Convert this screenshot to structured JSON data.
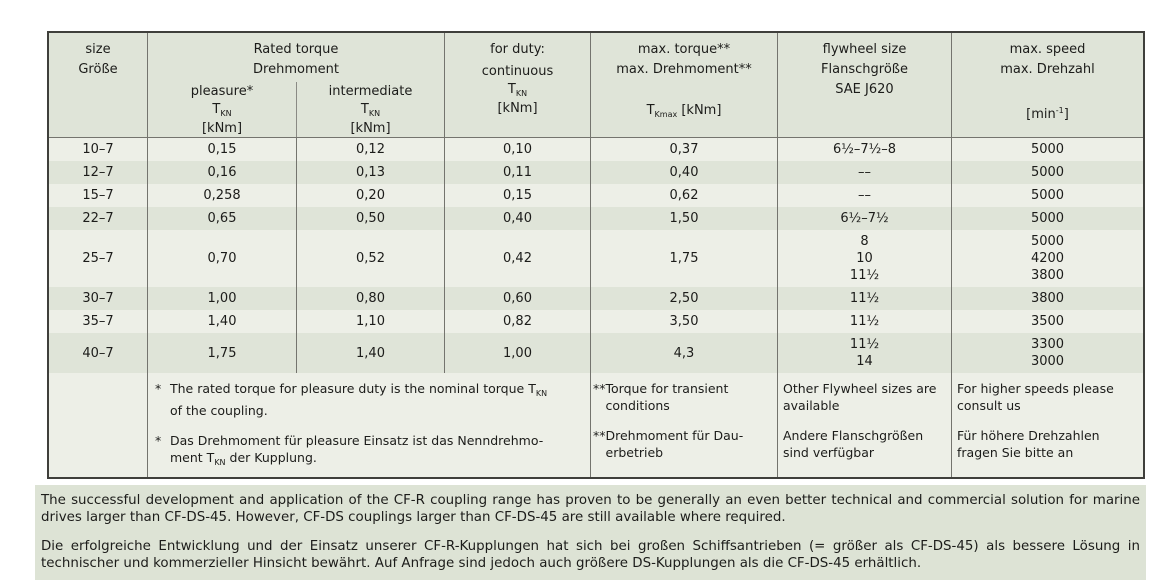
{
  "colors": {
    "row_light": "#edefe7",
    "row_dark": "#dfe4d8",
    "note_block_bg": "#dde3d5",
    "outer_border": "#3f3f3b",
    "grid_line": "#74746e",
    "text": "#1c1c1a"
  },
  "header": {
    "size_line1": "size",
    "size_line2": "Größe",
    "rated_line1": "Rated torque",
    "rated_line2": "Drehmoment",
    "sub_pleasure": "pleasure*",
    "sub_intermediate": "intermediate",
    "duty": "for duty:",
    "sub_continuous": "continuous",
    "torque_sym": "T",
    "torque_sub": "KN",
    "torque_unit": "[kNm]",
    "max_line1": "max. torque**",
    "max_line2": "max. Drehmoment**",
    "tmax_sym": "T",
    "tmax_sub": "Kmax",
    "tmax_unit": " [kNm]",
    "fly_line1": "flywheel size",
    "fly_line2": "Flanschgröße",
    "fly_line3": "SAE J620",
    "speed_line1": "max. speed",
    "speed_line2": "max. Drehzahl",
    "min_open": "[min",
    "min_sup": "-1",
    "min_close": "]"
  },
  "table": {
    "rows": [
      {
        "size": "10–7",
        "pleasure": "0,15",
        "intermediate": "0,12",
        "continuous": "0,10",
        "max_torque": "0,37",
        "flywheel": [
          "6½–7½–8"
        ],
        "speed": [
          "5000"
        ]
      },
      {
        "size": "12–7",
        "pleasure": "0,16",
        "intermediate": "0,13",
        "continuous": "0,11",
        "max_torque": "0,40",
        "flywheel": [
          "––"
        ],
        "speed": [
          "5000"
        ]
      },
      {
        "size": "15–7",
        "pleasure": "0,258",
        "intermediate": "0,20",
        "continuous": "0,15",
        "max_torque": "0,62",
        "flywheel": [
          "––"
        ],
        "speed": [
          "5000"
        ]
      },
      {
        "size": "22–7",
        "pleasure": "0,65",
        "intermediate": "0,50",
        "continuous": "0,40",
        "max_torque": "1,50",
        "flywheel": [
          "6½–7½"
        ],
        "speed": [
          "5000"
        ]
      },
      {
        "size": "25–7",
        "pleasure": "0,70",
        "intermediate": "0,52",
        "continuous": "0,42",
        "max_torque": "1,75",
        "flywheel": [
          "8",
          "10",
          "11½"
        ],
        "speed": [
          "5000",
          "4200",
          "3800"
        ]
      },
      {
        "size": "30–7",
        "pleasure": "1,00",
        "intermediate": "0,80",
        "continuous": "0,60",
        "max_torque": "2,50",
        "flywheel": [
          "11½"
        ],
        "speed": [
          "3800"
        ]
      },
      {
        "size": "35–7",
        "pleasure": "1,40",
        "intermediate": "1,10",
        "continuous": "0,82",
        "max_torque": "3,50",
        "flywheel": [
          "11½"
        ],
        "speed": [
          "3500"
        ]
      },
      {
        "size": "40–7",
        "pleasure": "1,75",
        "intermediate": "1,40",
        "continuous": "1,00",
        "max_torque": "4,3",
        "flywheel": [
          "11½",
          "14"
        ],
        "speed": [
          "3300",
          "3000"
        ]
      }
    ]
  },
  "footnotes": {
    "star": "*",
    "dstar": "**",
    "rated": {
      "en_l1": "The rated torque for pleasure duty is the nominal torque T",
      "en_sub": "KN",
      "en_l2": "of the coupling.",
      "de_l1": "Das Drehmoment für pleasure Einsatz ist das Nenndrehmo-",
      "de_l2a": "ment T",
      "de_sub": "KN",
      "de_l2b": " der Kupplung."
    },
    "torque": [
      {
        "lines": [
          "Torque for transient",
          "conditions"
        ]
      },
      {
        "lines": [
          "Drehmoment für Dau-",
          "erbetrieb"
        ]
      }
    ],
    "flywheel": [
      {
        "lines": [
          "Other Flywheel sizes are",
          "available"
        ]
      },
      {
        "lines": [
          "Andere Flanschgrößen",
          "sind verfügbar"
        ]
      }
    ],
    "speed": [
      {
        "lines": [
          "For higher speeds please",
          "consult us"
        ]
      },
      {
        "lines": [
          "Für höhere Drehzahlen",
          "fragen Sie bitte an"
        ]
      }
    ]
  },
  "notes_block": {
    "en": "The successful development and application of the CF-R coupling range has proven to be generally an even better technical and commercial solution for marine drives larger than CF-DS-45. However, CF-DS couplings larger than CF-DS-45 are still available where required.",
    "de": "Die erfolgreiche Entwicklung und der Einsatz unserer CF-R-Kupplungen hat sich bei großen Schiffsantrieben (= größer als CF-DS-45) als bessere Lösung in technischer und kommerzieller Hinsicht bewährt. Auf Anfrage sind jedoch auch größere DS-Kupplungen als die CF-DS-45 erhältlich."
  }
}
